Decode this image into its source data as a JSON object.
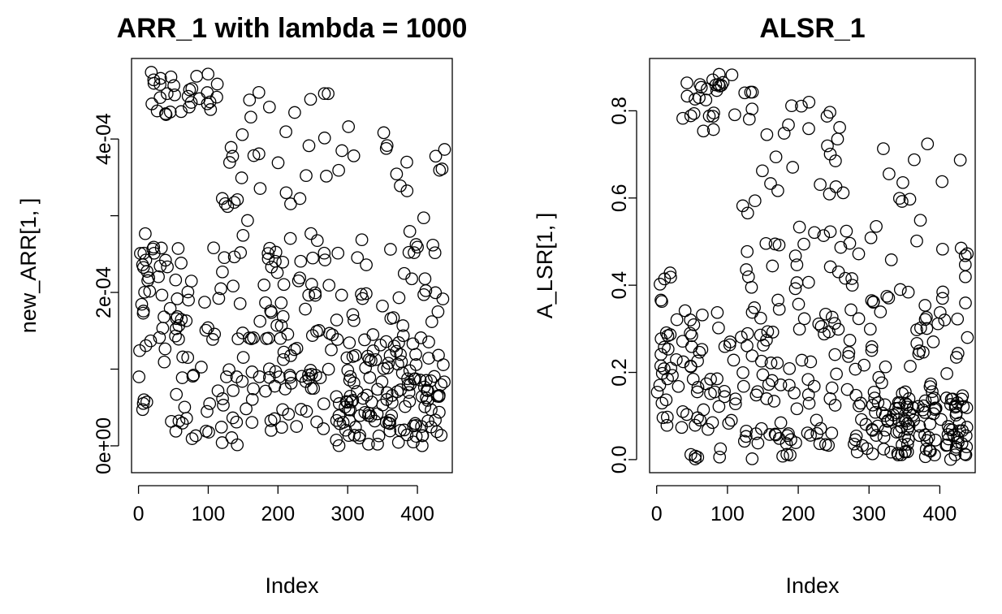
{
  "chart_data": [
    {
      "type": "scatter",
      "title": "ARR_1 with lambda = 1000",
      "xlabel": "Index",
      "ylabel": "new_ARR[1, ]",
      "xlim": [
        -10,
        450
      ],
      "ylim": [
        -3.5e-05,
        0.000505
      ],
      "xticks": [
        0,
        100,
        200,
        300,
        400
      ],
      "xtick_labels": [
        "0",
        "100",
        "200",
        "300",
        "400"
      ],
      "yticks": [
        0,
        0.0001,
        0.0002,
        0.0003,
        0.0004
      ],
      "ytick_labels": [
        "0e+00",
        "",
        "2e-04",
        "",
        "4e-04"
      ],
      "grid": false,
      "marker": "open-circle",
      "n_points": 440,
      "y_summary": "cluster of high values (4.3e-04 to 5.0e-04) at indices 15-115; broad scatter 0 to 3.8e-04 elsewhere; dense 0 to 1.2e-04 band for indices 280-440",
      "bands": [
        {
          "x_range": [
            0,
            20
          ],
          "y_range": [
            1e-05,
            0.00031
          ],
          "count": 22
        },
        {
          "x_range": [
            15,
            115
          ],
          "y_range": [
            0.00043,
            0.000487
          ],
          "count": 30
        },
        {
          "x_range": [
            20,
            120
          ],
          "y_range": [
            0,
            0.00026
          ],
          "count": 60
        },
        {
          "x_range": [
            120,
            280
          ],
          "y_range": [
            0.00025,
            0.00047
          ],
          "count": 36
        },
        {
          "x_range": [
            120,
            280
          ],
          "y_range": [
            8e-05,
            0.00026
          ],
          "count": 70
        },
        {
          "x_range": [
            120,
            280
          ],
          "y_range": [
            0,
            0.0001
          ],
          "count": 36
        },
        {
          "x_range": [
            280,
            440
          ],
          "y_range": [
            0.00026,
            0.00042
          ],
          "count": 20
        },
        {
          "x_range": [
            280,
            440
          ],
          "y_range": [
            0.0001,
            0.00026
          ],
          "count": 46
        },
        {
          "x_range": [
            280,
            440
          ],
          "y_range": [
            0,
            0.00012
          ],
          "count": 120
        }
      ]
    },
    {
      "type": "scatter",
      "title": "ALSR_1",
      "xlabel": "Index",
      "ylabel": "A_LSR[1, ]",
      "xlim": [
        -10,
        450
      ],
      "ylim": [
        -0.03,
        0.92
      ],
      "xticks": [
        0,
        100,
        200,
        300,
        400
      ],
      "xtick_labels": [
        "0",
        "100",
        "200",
        "300",
        "400"
      ],
      "yticks": [
        0,
        0.2,
        0.4,
        0.6,
        0.8
      ],
      "ytick_labels": [
        "0.0",
        "0.2",
        "0.4",
        "0.6",
        "0.8"
      ],
      "grid": false,
      "marker": "open-circle",
      "n_points": 440,
      "y_summary": "high cluster (0.75 to 0.89) at indices 15-115; broad scatter 0 to 0.8 in the middle indices; dense 0 to 0.2 band for indices 280-440",
      "bands": [
        {
          "x_range": [
            0,
            25
          ],
          "y_range": [
            0.03,
            0.47
          ],
          "count": 24
        },
        {
          "x_range": [
            15,
            115
          ],
          "y_range": [
            0.75,
            0.89
          ],
          "count": 26
        },
        {
          "x_range": [
            15,
            120
          ],
          "y_range": [
            0,
            0.35
          ],
          "count": 56
        },
        {
          "x_range": [
            120,
            280
          ],
          "y_range": [
            0.5,
            0.86
          ],
          "count": 36
        },
        {
          "x_range": [
            120,
            280
          ],
          "y_range": [
            0.15,
            0.5
          ],
          "count": 70
        },
        {
          "x_range": [
            120,
            280
          ],
          "y_range": [
            0,
            0.15
          ],
          "count": 38
        },
        {
          "x_range": [
            280,
            440
          ],
          "y_range": [
            0.4,
            0.77
          ],
          "count": 22
        },
        {
          "x_range": [
            280,
            440
          ],
          "y_range": [
            0.15,
            0.4
          ],
          "count": 46
        },
        {
          "x_range": [
            280,
            440
          ],
          "y_range": [
            0,
            0.15
          ],
          "count": 122
        }
      ]
    }
  ]
}
